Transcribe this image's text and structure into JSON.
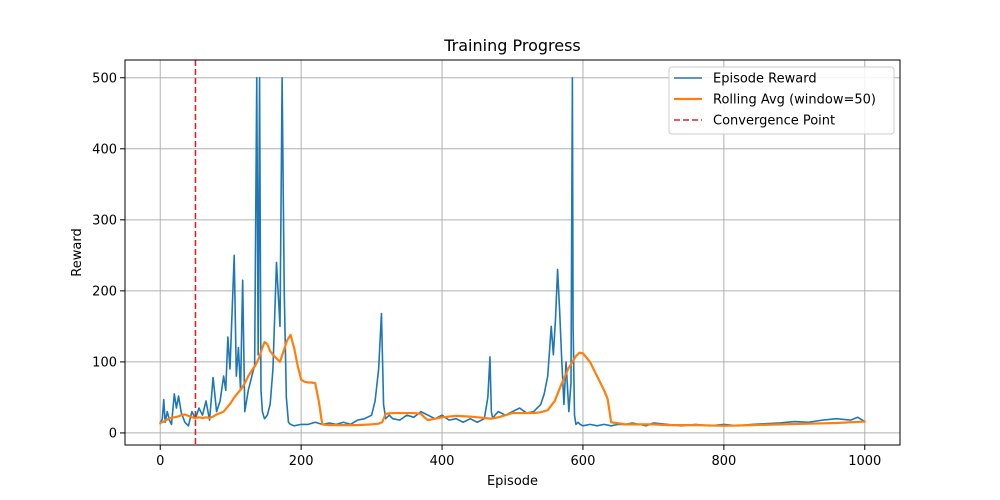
{
  "chart_data": {
    "type": "line",
    "title": "Training Progress",
    "xlabel": "Episode",
    "ylabel": "Reward",
    "xlim": [
      -50,
      1050
    ],
    "ylim": [
      -17,
      525
    ],
    "xticks": [
      0,
      200,
      400,
      600,
      800,
      1000
    ],
    "yticks": [
      0,
      100,
      200,
      300,
      400,
      500
    ],
    "grid": true,
    "legend_position": "top-right",
    "series": [
      {
        "name": "Episode Reward",
        "color": "#1f77b4",
        "style": "solid",
        "x": [
          0,
          3,
          5,
          7,
          10,
          13,
          16,
          20,
          23,
          26,
          30,
          35,
          40,
          45,
          50,
          55,
          60,
          65,
          70,
          75,
          80,
          85,
          90,
          93,
          96,
          99,
          102,
          105,
          108,
          111,
          114,
          117,
          120,
          125,
          130,
          134,
          137,
          139,
          141,
          143,
          145,
          148,
          152,
          156,
          160,
          165,
          170,
          173,
          176,
          179,
          182,
          185,
          190,
          200,
          210,
          220,
          230,
          240,
          250,
          260,
          270,
          280,
          290,
          300,
          305,
          310,
          314,
          317,
          320,
          325,
          330,
          340,
          350,
          360,
          370,
          380,
          390,
          400,
          410,
          420,
          430,
          440,
          450,
          460,
          465,
          468,
          470,
          472,
          475,
          480,
          490,
          500,
          510,
          520,
          530,
          540,
          545,
          550,
          555,
          558,
          561,
          564,
          567,
          570,
          573,
          576,
          580,
          583,
          585,
          586,
          588,
          590,
          593,
          596,
          600,
          610,
          620,
          630,
          640,
          650,
          660,
          670,
          680,
          690,
          700,
          720,
          740,
          760,
          780,
          800,
          820,
          840,
          860,
          880,
          900,
          920,
          940,
          960,
          980,
          990,
          1000
        ],
        "values": [
          13,
          20,
          47,
          15,
          30,
          18,
          12,
          55,
          35,
          52,
          28,
          15,
          10,
          30,
          20,
          35,
          25,
          45,
          18,
          78,
          30,
          45,
          80,
          60,
          135,
          90,
          170,
          250,
          80,
          120,
          60,
          215,
          30,
          60,
          80,
          95,
          500,
          110,
          500,
          60,
          30,
          20,
          25,
          40,
          90,
          240,
          150,
          500,
          200,
          50,
          15,
          12,
          10,
          12,
          12,
          15,
          12,
          14,
          12,
          15,
          12,
          18,
          20,
          25,
          45,
          90,
          168,
          40,
          20,
          25,
          20,
          18,
          25,
          22,
          30,
          25,
          20,
          25,
          18,
          20,
          15,
          20,
          15,
          20,
          50,
          107,
          30,
          20,
          25,
          30,
          25,
          30,
          35,
          28,
          30,
          40,
          55,
          80,
          150,
          110,
          160,
          230,
          170,
          100,
          40,
          100,
          30,
          70,
          500,
          150,
          25,
          12,
          15,
          12,
          10,
          12,
          10,
          12,
          10,
          12,
          12,
          14,
          12,
          10,
          14,
          12,
          10,
          12,
          10,
          12,
          10,
          12,
          13,
          14,
          16,
          15,
          18,
          20,
          18,
          22,
          16
        ]
      },
      {
        "name": "Rolling Avg (window=50)",
        "color": "#ff7f0e",
        "style": "solid",
        "x": [
          0,
          5,
          10,
          15,
          20,
          25,
          30,
          35,
          40,
          45,
          50,
          55,
          60,
          65,
          70,
          75,
          80,
          85,
          90,
          95,
          100,
          105,
          110,
          115,
          120,
          125,
          130,
          135,
          140,
          145,
          148,
          152,
          156,
          160,
          165,
          170,
          175,
          180,
          185,
          190,
          195,
          200,
          205,
          210,
          215,
          220,
          225,
          230,
          240,
          260,
          280,
          300,
          310,
          315,
          320,
          330,
          340,
          350,
          360,
          370,
          375,
          380,
          400,
          420,
          440,
          460,
          470,
          480,
          500,
          520,
          530,
          540,
          550,
          560,
          570,
          580,
          590,
          595,
          600,
          610,
          620,
          630,
          635,
          640,
          660,
          700,
          720,
          760,
          800,
          840,
          880,
          920,
          960,
          1000
        ],
        "values": [
          14,
          16,
          19,
          21,
          22,
          23,
          25,
          26,
          24,
          22,
          21,
          22,
          21,
          22,
          21,
          23,
          26,
          28,
          30,
          36,
          42,
          50,
          56,
          62,
          70,
          80,
          88,
          95,
          105,
          120,
          128,
          125,
          115,
          110,
          105,
          100,
          115,
          130,
          138,
          120,
          95,
          75,
          72,
          71,
          71,
          70,
          45,
          12,
          11,
          11,
          11,
          12,
          13,
          15,
          27,
          28,
          28,
          28,
          28,
          27,
          22,
          18,
          22,
          24,
          23,
          21,
          20,
          22,
          28,
          28,
          28,
          29,
          32,
          45,
          70,
          92,
          108,
          113,
          112,
          100,
          80,
          60,
          48,
          15,
          12,
          12,
          11,
          11,
          10,
          11,
          12,
          13,
          14,
          16
        ]
      }
    ],
    "annotations": [
      {
        "type": "vline",
        "x": 50,
        "name": "Convergence Point",
        "color": "#d62728",
        "style": "dashed"
      }
    ]
  }
}
